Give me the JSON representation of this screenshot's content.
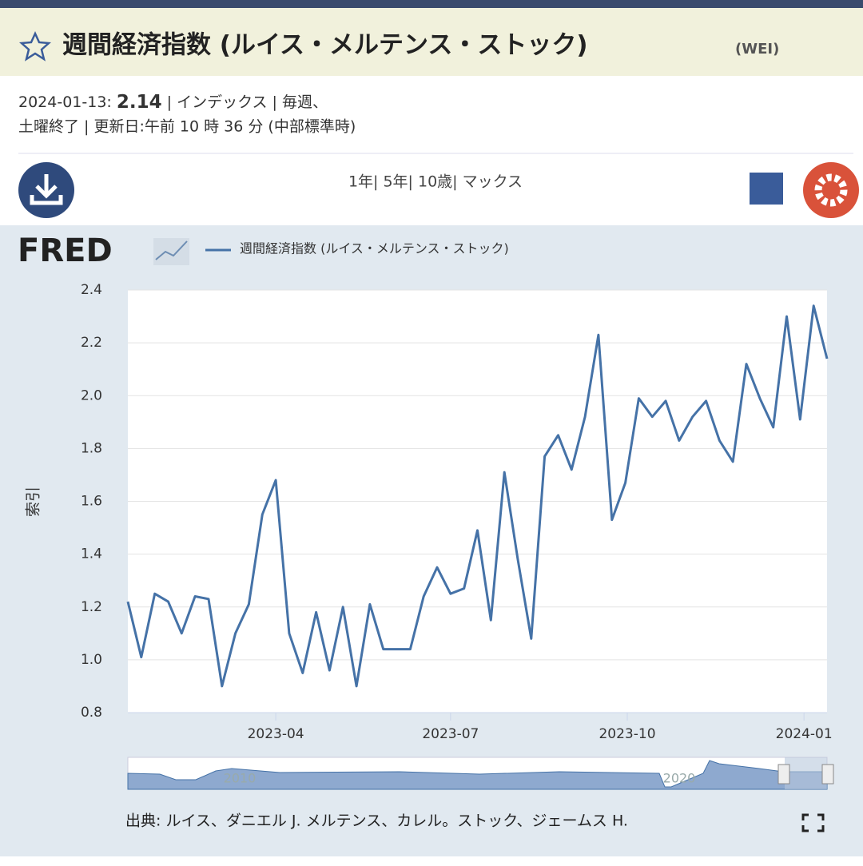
{
  "header": {
    "title": "週間経済指数 (ルイス・メルテンス・ストック)",
    "code": "(WEI)",
    "date": "2024-01-13: ",
    "value": "2.14",
    "info1": "| インデックス | 毎週、",
    "info2": "土曜終了 | 更新日:午前 10 時 36 分 (中部標準時)"
  },
  "ranges": "1年| 5年| 10歳| マックス",
  "logo": "FRED",
  "chart_data": {
    "type": "line",
    "y_label": "索引",
    "x": [
      "2023-01-14",
      "2023-01-21",
      "2023-01-28",
      "2023-02-04",
      "2023-02-11",
      "2023-02-18",
      "2023-02-25",
      "2023-03-04",
      "2023-03-11",
      "2023-03-18",
      "2023-03-25",
      "2023-04-01",
      "2023-04-08",
      "2023-04-15",
      "2023-04-22",
      "2023-04-29",
      "2023-05-06",
      "2023-05-13",
      "2023-05-20",
      "2023-05-27",
      "2023-06-03",
      "2023-06-10",
      "2023-06-17",
      "2023-06-24",
      "2023-07-01",
      "2023-07-08",
      "2023-07-15",
      "2023-07-22",
      "2023-07-29",
      "2023-08-05",
      "2023-08-12",
      "2023-08-19",
      "2023-08-26",
      "2023-09-02",
      "2023-09-09",
      "2023-09-16",
      "2023-09-23",
      "2023-09-30",
      "2023-10-07",
      "2023-10-14",
      "2023-10-21",
      "2023-10-28",
      "2023-11-04",
      "2023-11-11",
      "2023-11-18",
      "2023-11-25",
      "2023-12-02",
      "2023-12-09",
      "2023-12-16",
      "2023-12-23",
      "2023-12-30",
      "2024-01-06",
      "2024-01-13"
    ],
    "series": [
      {
        "name": "週間経済指数 (ルイス・メルテンス・ストック)",
        "color": "#4572a7",
        "values": [
          1.22,
          1.01,
          1.25,
          1.22,
          1.1,
          1.24,
          1.23,
          0.9,
          1.1,
          1.21,
          1.55,
          1.68,
          1.1,
          0.95,
          1.18,
          0.96,
          1.2,
          0.9,
          1.21,
          1.04,
          1.04,
          1.04,
          1.24,
          1.35,
          1.25,
          1.27,
          1.49,
          1.15,
          1.71,
          1.38,
          1.08,
          1.77,
          1.85,
          1.72,
          1.92,
          2.23,
          1.53,
          1.67,
          1.99,
          1.92,
          1.98,
          1.83,
          1.92,
          1.98,
          1.83,
          1.75,
          2.12,
          1.99,
          1.88,
          2.3,
          1.91,
          2.34,
          2.14
        ]
      }
    ],
    "xlim": [
      "2023-01-14",
      "2024-01-13"
    ],
    "xticks": [
      {
        "value": "2023-04-01",
        "label": "2023-04"
      },
      {
        "value": "2023-07-01",
        "label": "2023-07"
      },
      {
        "value": "2023-10-01",
        "label": "2023-10"
      },
      {
        "value": "2024-01-01",
        "label": "2024-01"
      }
    ],
    "ylim": [
      0.8,
      2.4
    ],
    "yticks": [
      0.8,
      {
        "value": 1,
        "label": "1.0"
      },
      1.2,
      1.4,
      1.6,
      1.8,
      {
        "value": 2,
        "label": "2.0"
      },
      2.2,
      2.4
    ],
    "grid": true
  },
  "navigator": [
    "2010",
    "2020"
  ],
  "source": "出典: ルイス、ダニエル J. メルテンス、カレル。ストック、ジェームス H."
}
